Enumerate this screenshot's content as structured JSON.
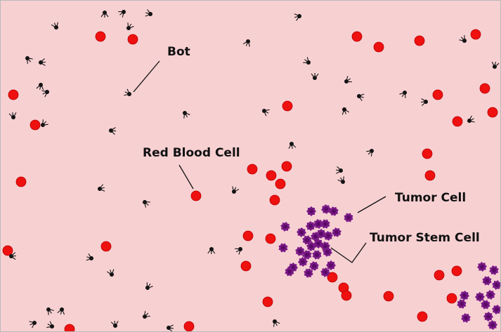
{
  "labels": {
    "bot": "Bot",
    "red_blood_cell": "Red Blood Cell",
    "tumor_cell": "Tumor Cell",
    "tumor_stem_cell": "Tumor Stem Cell"
  },
  "colors": {
    "background": "#f7d0d2",
    "red_blood_cell": "#ef1010",
    "tumor_cell": "#7a1a86",
    "tumor_stem_cell": "#5a0a66",
    "bot": "#141414"
  },
  "icons": {
    "bot": "bot-icon",
    "red_blood_cell": "red-blood-cell-icon",
    "tumor_cell": "tumor-cell-icon"
  }
}
